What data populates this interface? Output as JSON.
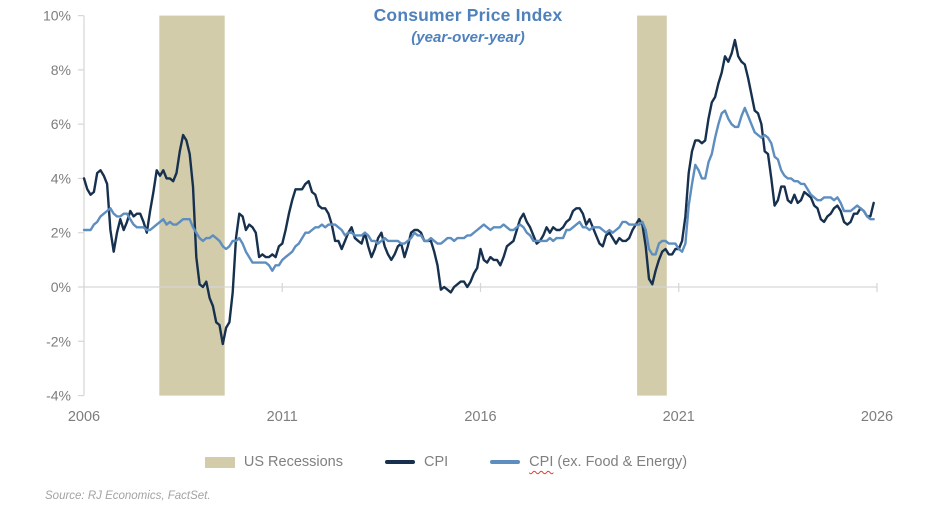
{
  "colors": {
    "cpi_line": "#16304e",
    "core_line": "#5e8ebf",
    "recession_band": "#d2ccab",
    "title_text": "#4f81bd",
    "axis_text": "#7d7d7d",
    "legend_text": "#808080",
    "axis_line": "#d6d6d6",
    "source_text": "#a3a3a3",
    "spellcheck_underline": "#e03c31",
    "background": "#ffffff"
  },
  "chart_data": {
    "type": "line",
    "title": "Consumer Price Index",
    "subtitle": "(year-over-year)",
    "x_axis": {
      "min": 2006,
      "max": 2026,
      "ticks": [
        2006,
        2011,
        2016,
        2021,
        2026
      ],
      "frequency": "monthly",
      "start": "2006-01",
      "end": "2025-12"
    },
    "y_axis": {
      "min": -4,
      "max": 10,
      "ticks": [
        10,
        8,
        6,
        4,
        2,
        0,
        -2,
        -4
      ],
      "suffix": "%",
      "zero_axis_line": true,
      "gridlines": false
    },
    "legend_position": "bottom",
    "recessions": {
      "label": "US Recessions",
      "color": "#d2ccab",
      "spans": [
        [
          2007.9,
          2009.55
        ],
        [
          2019.95,
          2020.7
        ]
      ]
    },
    "series": [
      {
        "name": "CPI",
        "color": "#16304e",
        "values": [
          4.0,
          3.6,
          3.4,
          3.5,
          4.2,
          4.3,
          4.1,
          3.8,
          2.1,
          1.3,
          2.0,
          2.5,
          2.1,
          2.4,
          2.8,
          2.6,
          2.7,
          2.7,
          2.4,
          2.0,
          2.8,
          3.5,
          4.3,
          4.1,
          4.3,
          4.0,
          4.0,
          3.9,
          4.2,
          5.0,
          5.6,
          5.4,
          4.9,
          3.7,
          1.1,
          0.1,
          0.0,
          0.2,
          -0.4,
          -0.7,
          -1.3,
          -1.4,
          -2.1,
          -1.5,
          -1.3,
          -0.2,
          1.8,
          2.7,
          2.6,
          2.1,
          2.3,
          2.2,
          2.0,
          1.1,
          1.2,
          1.1,
          1.1,
          1.2,
          1.1,
          1.5,
          1.6,
          2.1,
          2.7,
          3.2,
          3.6,
          3.6,
          3.6,
          3.8,
          3.9,
          3.5,
          3.4,
          3.0,
          2.9,
          2.9,
          2.7,
          2.3,
          1.7,
          1.7,
          1.4,
          1.7,
          2.0,
          2.2,
          1.8,
          1.7,
          1.6,
          2.0,
          1.5,
          1.1,
          1.4,
          1.8,
          2.0,
          1.5,
          1.2,
          1.0,
          1.2,
          1.5,
          1.6,
          1.1,
          1.5,
          2.0,
          2.1,
          2.1,
          2.0,
          1.7,
          1.7,
          1.7,
          1.3,
          0.8,
          -0.1,
          0.0,
          -0.1,
          -0.2,
          0.0,
          0.1,
          0.2,
          0.2,
          0.0,
          0.2,
          0.5,
          0.7,
          1.4,
          1.0,
          0.9,
          1.1,
          1.0,
          1.0,
          0.8,
          1.1,
          1.5,
          1.6,
          1.7,
          2.1,
          2.5,
          2.7,
          2.4,
          2.2,
          1.9,
          1.6,
          1.7,
          1.9,
          2.2,
          2.0,
          2.2,
          2.1,
          2.1,
          2.2,
          2.4,
          2.5,
          2.8,
          2.9,
          2.9,
          2.7,
          2.3,
          2.5,
          2.2,
          1.9,
          1.6,
          1.5,
          1.9,
          2.0,
          1.8,
          1.6,
          1.8,
          1.7,
          1.7,
          1.8,
          2.1,
          2.3,
          2.5,
          2.3,
          1.5,
          0.3,
          0.1,
          0.6,
          1.0,
          1.3,
          1.4,
          1.2,
          1.2,
          1.4,
          1.4,
          1.7,
          2.6,
          4.2,
          5.0,
          5.4,
          5.4,
          5.3,
          5.4,
          6.2,
          6.8,
          7.0,
          7.5,
          7.9,
          8.5,
          8.3,
          8.6,
          9.1,
          8.5,
          8.3,
          8.2,
          7.7,
          7.1,
          6.5,
          6.4,
          6.0,
          5.0,
          4.9,
          4.0,
          3.0,
          3.2,
          3.7,
          3.7,
          3.2,
          3.1,
          3.4,
          3.1,
          3.2,
          3.5,
          3.4,
          3.3,
          3.0,
          2.9,
          2.5,
          2.4,
          2.6,
          2.7,
          2.9,
          3.0,
          2.8,
          2.4,
          2.3,
          2.4,
          2.7,
          2.7,
          2.9,
          2.8,
          2.6,
          2.6,
          3.1
        ]
      },
      {
        "name": "CPI (ex. Food & Energy)",
        "color": "#5e8ebf",
        "values": [
          2.1,
          2.1,
          2.1,
          2.3,
          2.4,
          2.6,
          2.7,
          2.8,
          2.9,
          2.7,
          2.6,
          2.6,
          2.7,
          2.7,
          2.5,
          2.3,
          2.2,
          2.2,
          2.2,
          2.1,
          2.1,
          2.2,
          2.3,
          2.4,
          2.5,
          2.3,
          2.4,
          2.3,
          2.3,
          2.4,
          2.5,
          2.5,
          2.5,
          2.2,
          2.0,
          1.8,
          1.7,
          1.8,
          1.8,
          1.9,
          1.8,
          1.7,
          1.5,
          1.4,
          1.5,
          1.7,
          1.7,
          1.8,
          1.6,
          1.3,
          1.1,
          0.9,
          0.9,
          0.9,
          0.9,
          0.9,
          0.8,
          0.6,
          0.8,
          0.8,
          1.0,
          1.1,
          1.2,
          1.3,
          1.5,
          1.6,
          1.8,
          2.0,
          2.0,
          2.1,
          2.2,
          2.2,
          2.3,
          2.2,
          2.3,
          2.3,
          2.3,
          2.2,
          2.1,
          1.9,
          2.0,
          2.0,
          1.9,
          1.9,
          1.9,
          2.0,
          1.9,
          1.7,
          1.7,
          1.6,
          1.7,
          1.8,
          1.7,
          1.7,
          1.7,
          1.7,
          1.6,
          1.6,
          1.7,
          1.8,
          2.0,
          1.9,
          1.9,
          1.7,
          1.7,
          1.8,
          1.7,
          1.6,
          1.6,
          1.7,
          1.8,
          1.8,
          1.7,
          1.8,
          1.8,
          1.8,
          1.9,
          1.9,
          2.0,
          2.1,
          2.2,
          2.3,
          2.2,
          2.1,
          2.2,
          2.2,
          2.2,
          2.3,
          2.2,
          2.1,
          2.1,
          2.2,
          2.3,
          2.2,
          2.0,
          1.9,
          1.7,
          1.7,
          1.7,
          1.7,
          1.7,
          1.8,
          1.7,
          1.8,
          1.8,
          1.8,
          2.1,
          2.1,
          2.2,
          2.3,
          2.4,
          2.2,
          2.2,
          2.1,
          2.2,
          2.2,
          2.2,
          2.1,
          2.0,
          2.1,
          2.0,
          2.1,
          2.2,
          2.4,
          2.4,
          2.3,
          2.3,
          2.3,
          2.3,
          2.4,
          2.1,
          1.4,
          1.2,
          1.2,
          1.6,
          1.7,
          1.7,
          1.6,
          1.6,
          1.6,
          1.4,
          1.3,
          1.6,
          3.0,
          3.8,
          4.5,
          4.3,
          4.0,
          4.0,
          4.6,
          4.9,
          5.5,
          6.0,
          6.4,
          6.5,
          6.2,
          6.0,
          5.9,
          5.9,
          6.3,
          6.6,
          6.3,
          6.0,
          5.7,
          5.6,
          5.5,
          5.6,
          5.5,
          5.3,
          4.8,
          4.7,
          4.3,
          4.1,
          4.0,
          4.0,
          3.9,
          3.9,
          3.8,
          3.8,
          3.6,
          3.4,
          3.3,
          3.2,
          3.2,
          3.3,
          3.3,
          3.3,
          3.2,
          3.3,
          3.1,
          2.8,
          2.8,
          2.8,
          2.9,
          3.0,
          2.9,
          2.8,
          2.6,
          2.5,
          2.5
        ]
      }
    ]
  },
  "legend": {
    "items": [
      {
        "label": "US Recessions",
        "swatch": "band"
      },
      {
        "label": "CPI",
        "swatch": "line"
      },
      {
        "label_flagged": "CPI",
        "label_rest": " (ex. Food & Energy)",
        "swatch": "line",
        "spellcheck_marked": true
      }
    ]
  },
  "source": {
    "text": "Source: RJ Economics, FactSet."
  }
}
